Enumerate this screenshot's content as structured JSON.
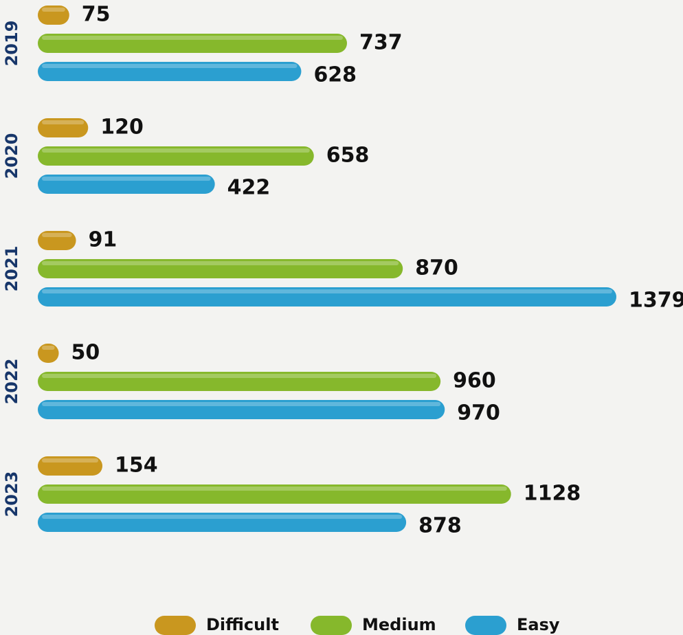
{
  "chart_data": {
    "type": "bar",
    "orientation": "horizontal",
    "categories": [
      "2019",
      "2020",
      "2021",
      "2022",
      "2023"
    ],
    "series": [
      {
        "name": "Difficult",
        "color": "#c9971f",
        "values": [
          75,
          120,
          91,
          50,
          154
        ]
      },
      {
        "name": "Medium",
        "color": "#86b82c",
        "values": [
          737,
          658,
          870,
          960,
          1128
        ]
      },
      {
        "name": "Easy",
        "color": "#2b9fd0",
        "values": [
          628,
          422,
          1379,
          970,
          878
        ]
      }
    ],
    "legend": "bottom"
  }
}
